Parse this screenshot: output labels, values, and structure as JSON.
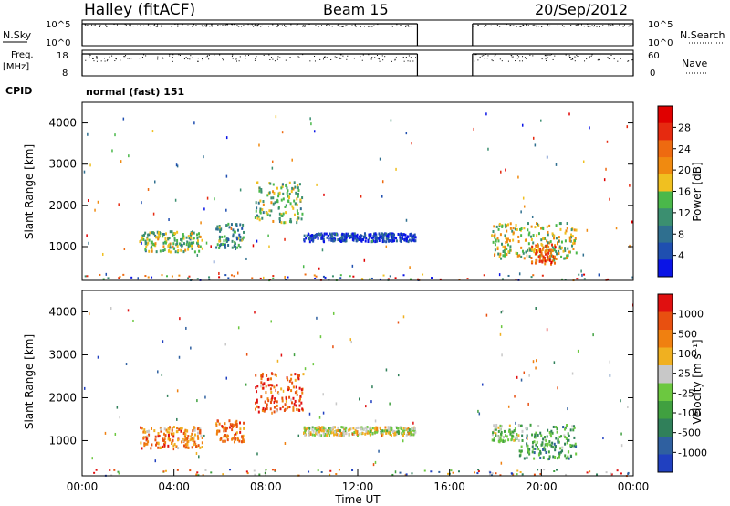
{
  "header": {
    "station": "Halley (fitACF)",
    "beam": "Beam 15",
    "date": "20/Sep/2012"
  },
  "colors": {
    "power_scale": [
      "#0a14e6",
      "#1f4fb0",
      "#2f6f8f",
      "#3b8f70",
      "#4ab84a",
      "#f0c020",
      "#f08a10",
      "#ee6a10",
      "#e62a10",
      "#e00000"
    ],
    "velocity_scale": [
      "#2040c0",
      "#2f60a0",
      "#30805a",
      "#40a040",
      "#6cc840",
      "#c8c8c8",
      "#f0b020",
      "#f08010",
      "#e85010",
      "#e01010"
    ]
  },
  "chart_data": [
    {
      "type": "line",
      "name": "nsky-nsearch",
      "left_label": "N.Sky",
      "right_label": "N.Search",
      "left_ticks": [
        "10^5",
        "10^0"
      ],
      "right_ticks": [
        "10^5",
        "10^0"
      ],
      "data_gap_hours": [
        14.6,
        17.0
      ],
      "x_range_hours": [
        0,
        24
      ]
    },
    {
      "type": "line",
      "name": "freq-nave",
      "left_label": "Freq.",
      "left_unit": "[MHz]",
      "right_label": "Nave",
      "left_ticks": [
        "18",
        "8"
      ],
      "right_ticks": [
        "60",
        "0"
      ],
      "data_gap_hours": [
        14.6,
        17.0
      ]
    },
    {
      "type": "table",
      "name": "cpid",
      "label": "CPID",
      "value": "normal (fast) 151"
    },
    {
      "type": "heatmap",
      "name": "power",
      "ylabel": "Slant Range [km]",
      "y_ticks": [
        1000,
        2000,
        3000,
        4000
      ],
      "y_range_km": [
        180,
        4500
      ],
      "colorbar_label": "Power [dB]",
      "colorbar_ticks": [
        "28",
        "24",
        "20",
        "16",
        "12",
        "8",
        "4"
      ],
      "echo_regions": [
        {
          "t": [
            2.5,
            5.2
          ],
          "r": [
            900,
            1400
          ],
          "level": 0.45
        },
        {
          "t": [
            5.8,
            7.0
          ],
          "r": [
            1000,
            1600
          ],
          "level": 0.35
        },
        {
          "t": [
            7.5,
            9.6
          ],
          "r": [
            1600,
            2600
          ],
          "level": 0.45
        },
        {
          "t": [
            9.6,
            14.5
          ],
          "r": [
            1150,
            1350
          ],
          "level": 0.1
        },
        {
          "t": [
            17.8,
            21.5
          ],
          "r": [
            700,
            1600
          ],
          "level": 0.5
        },
        {
          "t": [
            19.5,
            20.6
          ],
          "r": [
            600,
            1100
          ],
          "level": 0.75
        }
      ]
    },
    {
      "type": "heatmap",
      "name": "velocity",
      "ylabel": "Slant Range [km]",
      "xlabel": "Time UT",
      "y_ticks": [
        1000,
        2000,
        3000,
        4000
      ],
      "x_ticks": [
        "00:00",
        "04:00",
        "08:00",
        "12:00",
        "16:00",
        "20:00",
        "00:00"
      ],
      "colorbar_label": "Velocity [m s⁻¹]",
      "colorbar_ticks": [
        "1000",
        "500",
        "100",
        "25",
        "-25",
        "-100",
        "-500",
        "-1000"
      ],
      "echo_regions": [
        {
          "t": [
            2.5,
            5.2
          ],
          "r": [
            850,
            1350
          ],
          "level": 0.75
        },
        {
          "t": [
            5.8,
            7.0
          ],
          "r": [
            1000,
            1500
          ],
          "level": 0.8
        },
        {
          "t": [
            7.5,
            9.6
          ],
          "r": [
            1700,
            2600
          ],
          "level": 0.85
        },
        {
          "t": [
            9.6,
            14.5
          ],
          "r": [
            1150,
            1350
          ],
          "level": 0.55
        },
        {
          "t": [
            17.8,
            19.0
          ],
          "r": [
            1000,
            1400
          ],
          "level": 0.5
        },
        {
          "t": [
            19.0,
            21.5
          ],
          "r": [
            600,
            1400
          ],
          "level": 0.35
        }
      ]
    }
  ]
}
